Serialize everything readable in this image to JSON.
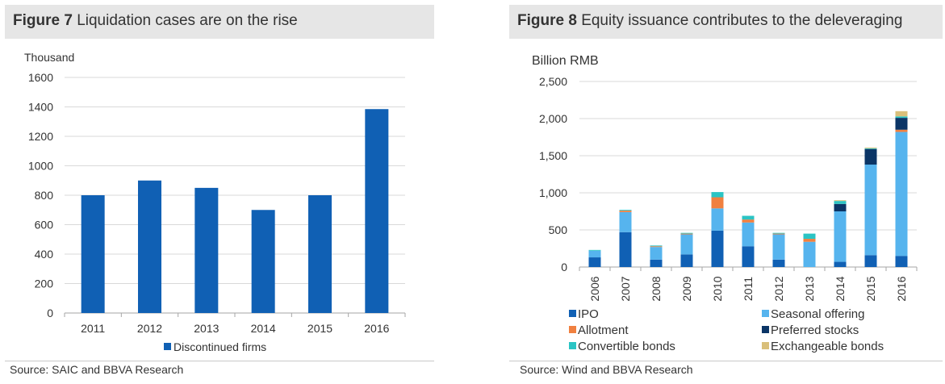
{
  "figures": [
    {
      "number": "Figure 7",
      "title": "Liquidation cases are on the rise",
      "source": "Source: SAIC and BBVA Research"
    },
    {
      "number": "Figure 8",
      "title": "Equity issuance contributes to the deleveraging",
      "source": "Source: Wind and BBVA Research"
    }
  ],
  "chart_data": [
    {
      "type": "bar",
      "title": "Liquidation cases are on the rise",
      "ylabel": "Thousand",
      "xlabel": "",
      "categories": [
        "2011",
        "2012",
        "2013",
        "2014",
        "2015",
        "2016"
      ],
      "series": [
        {
          "name": "Discontinued firms",
          "color": "#1060b4",
          "values": [
            800,
            900,
            850,
            700,
            800,
            1385
          ]
        }
      ],
      "ylim": [
        0,
        1600
      ],
      "yticks": [
        0,
        200,
        400,
        600,
        800,
        1000,
        1200,
        1400,
        1600
      ],
      "ytick_labels": [
        "0",
        "200",
        "400",
        "600",
        "800",
        "1000",
        "1200",
        "1400",
        "1600"
      ],
      "grid": true,
      "legend": "bottom"
    },
    {
      "type": "bar",
      "stacked": true,
      "title": "Equity issuance contributes to the deleveraging",
      "ylabel": "Billion RMB",
      "xlabel": "",
      "categories": [
        "2006",
        "2007",
        "2008",
        "2009",
        "2010",
        "2011",
        "2012",
        "2013",
        "2014",
        "2015",
        "2016"
      ],
      "series": [
        {
          "name": "IPO",
          "color": "#1060b4",
          "values": [
            130,
            470,
            100,
            170,
            490,
            280,
            100,
            0,
            70,
            160,
            150
          ]
        },
        {
          "name": "Seasonal offering",
          "color": "#56b4ee",
          "values": [
            90,
            270,
            170,
            270,
            300,
            320,
            340,
            340,
            680,
            1220,
            1670
          ]
        },
        {
          "name": "Allotment",
          "color": "#f08040",
          "values": [
            0,
            20,
            10,
            10,
            150,
            40,
            10,
            40,
            0,
            0,
            30
          ]
        },
        {
          "name": "Preferred stocks",
          "color": "#0b3566",
          "values": [
            0,
            0,
            0,
            0,
            0,
            0,
            0,
            0,
            100,
            210,
            160
          ]
        },
        {
          "name": "Convertible bonds",
          "color": "#2bc4c4",
          "values": [
            10,
            10,
            10,
            10,
            70,
            50,
            10,
            70,
            40,
            10,
            20
          ]
        },
        {
          "name": "Exchangeable bonds",
          "color": "#d9bf7a",
          "values": [
            0,
            0,
            0,
            0,
            0,
            0,
            0,
            0,
            10,
            10,
            70
          ]
        }
      ],
      "ylim": [
        0,
        2500
      ],
      "yticks": [
        0,
        500,
        1000,
        1500,
        2000,
        2500
      ],
      "ytick_labels": [
        "0",
        "500",
        "1,000",
        "1,500",
        "2,000",
        "2,500"
      ],
      "grid": true,
      "legend": "bottom"
    }
  ]
}
